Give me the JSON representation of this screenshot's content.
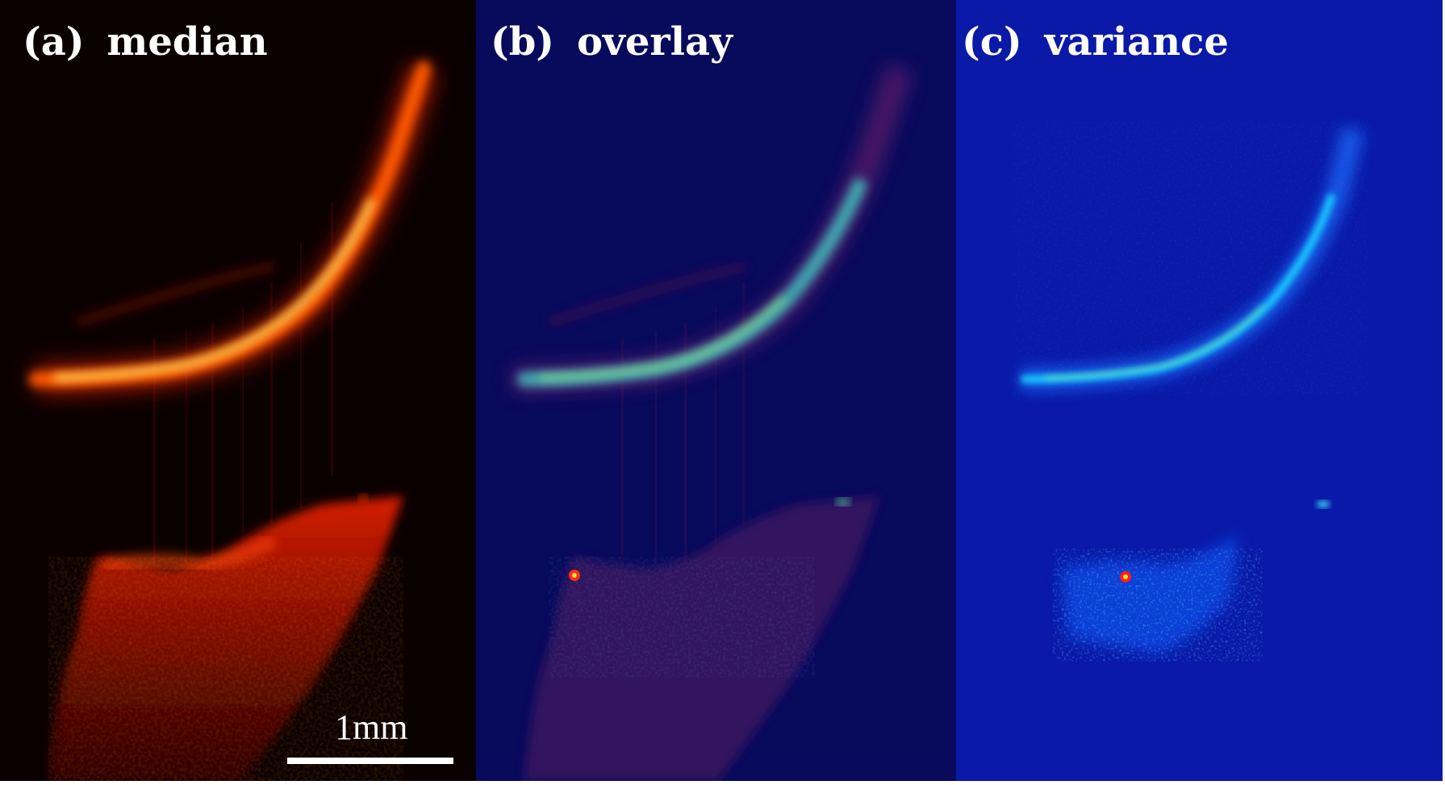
{
  "panels": [
    {
      "letter": "(a)",
      "title": "median",
      "colormap": "hot",
      "background": "#0b0000"
    },
    {
      "letter": "(b)",
      "title": "overlay",
      "colormap": "hot-over-jet",
      "background": "#080a5c"
    },
    {
      "letter": "(c)",
      "title": "variance",
      "colormap": "jet",
      "background": "#0a19a8"
    }
  ],
  "scalebar": {
    "label": "1mm"
  },
  "colors": {
    "hot_dim": "#7a0a00",
    "hot_mid": "#ff3a00",
    "hot_bright": "#ffd040",
    "jet_low": "#0038ff",
    "jet_mid": "#18c8ff",
    "jet_high": "#e8ff40",
    "jet_peak": "#ff2000"
  }
}
